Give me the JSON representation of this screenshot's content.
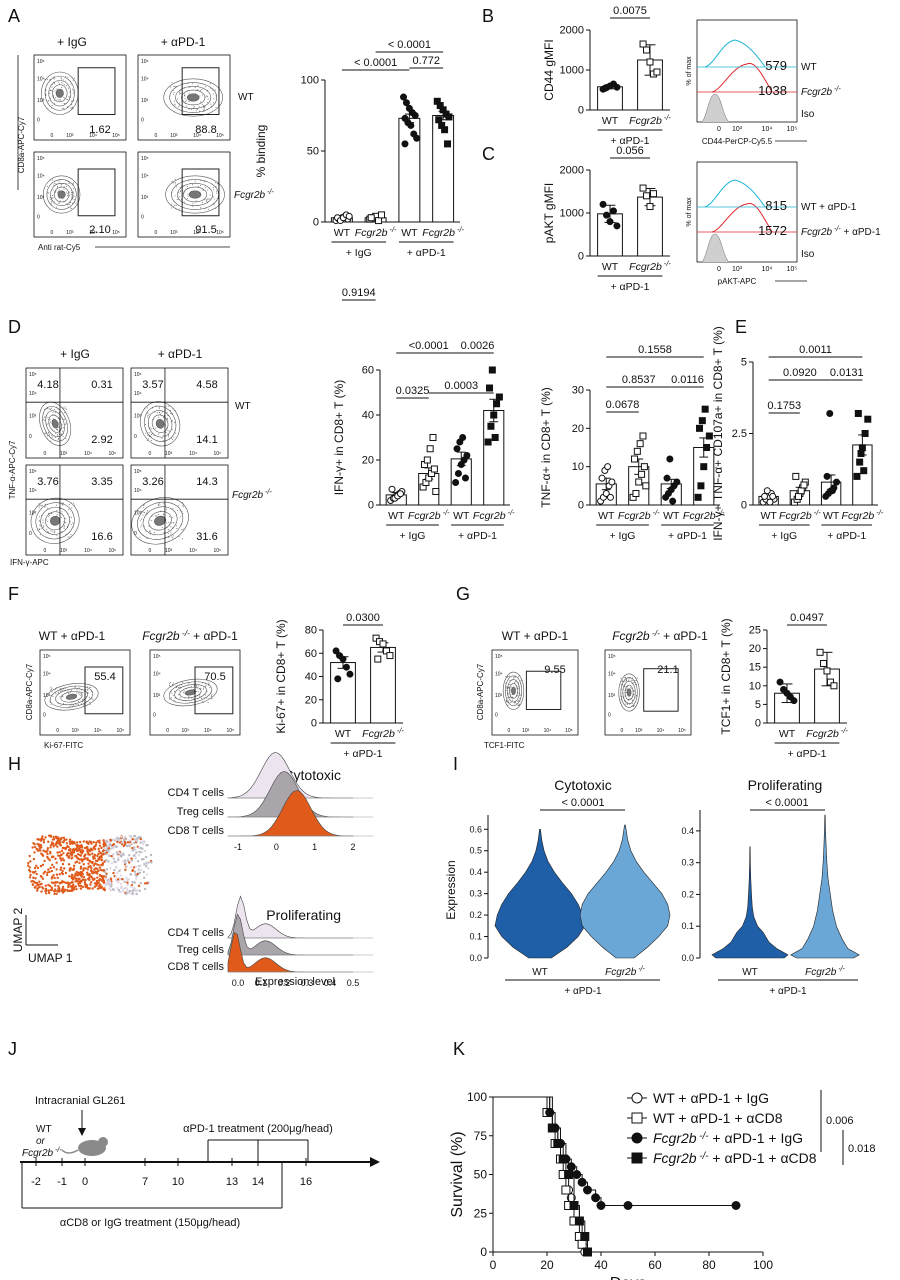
{
  "panels": {
    "A": {
      "letter": "A",
      "col_titles": [
        "+ IgG",
        "+ αPD-1"
      ],
      "row_labels": [
        "WT",
        "Fcgr2b -/-"
      ],
      "y_axis": "CD8a-APC-Cy7",
      "x_axis": "Anti rat-Cy5",
      "gate_values": [
        "1.62",
        "88.8",
        "2.10",
        "91.5"
      ]
    },
    "B": {
      "letter": "B",
      "hist_x_axis": "CD44-PerCP-Cy5.5",
      "hist_y_axis": "% of max",
      "hist_legend": [
        {
          "value": "579",
          "label": "WT",
          "color": "#1fb5d4"
        },
        {
          "value": "1038",
          "label": "Fcgr2b -/-",
          "color": "#e0262b"
        },
        {
          "value": "",
          "label": "Iso",
          "color": "#111111"
        }
      ]
    },
    "C": {
      "letter": "C",
      "hist_x_axis": "pAKT-APC",
      "hist_y_axis": "% of max",
      "hist_legend": [
        {
          "value": "815",
          "label": "WT + αPD-1",
          "color": "#1fb5d4"
        },
        {
          "value": "1572",
          "label": "Fcgr2b -/- + αPD-1",
          "color": "#e0262b"
        },
        {
          "value": "",
          "label": "Iso",
          "color": "#111111"
        }
      ]
    },
    "D": {
      "letter": "D",
      "col_titles": [
        "+ IgG",
        "+ αPD-1"
      ],
      "row_labels": [
        "WT",
        "Fcgr2b -/-"
      ],
      "y_axis": "TNF-α-APC-Cy7",
      "x_axis": "IFN-γ-APC",
      "quad_values": [
        [
          "4.18",
          "0.31",
          "2.92"
        ],
        [
          "3.57",
          "4.58",
          "14.1"
        ],
        [
          "3.76",
          "3.35",
          "16.6"
        ],
        [
          "3.26",
          "14.3",
          "31.6"
        ]
      ]
    },
    "E": {
      "letter": "E"
    },
    "F": {
      "letter": "F",
      "titles": [
        "WT + αPD-1",
        "Fcgr2b -/- + αPD-1"
      ],
      "y_axis": "CD8a-APC-Cy7",
      "x_axis": "Ki-67-FITC",
      "gate_values": [
        "55.4",
        "70.5"
      ]
    },
    "G": {
      "letter": "G",
      "titles": [
        "WT + αPD-1",
        "Fcgr2b -/- + αPD-1"
      ],
      "y_axis": "CD8a-APC-Cy7",
      "x_axis": "TCF1-FITC",
      "gate_values": [
        "9.55",
        "21.1"
      ]
    },
    "H": {
      "letter": "H",
      "umap_x": "UMAP 1",
      "umap_y": "UMAP 2",
      "ridge_titles": [
        "Cytotoxic",
        "Proliferating"
      ],
      "ridge_rows": [
        "CD4 T cells",
        "Treg cells",
        "CD8 T cells"
      ],
      "ridge1_ticks": [
        "-1",
        "0",
        "1",
        "2"
      ],
      "ridge2_ticks": [
        "0.0",
        "0.1",
        "0.2",
        "0.3",
        "0.4",
        "0.5"
      ],
      "ridge_x_label": "Expression level"
    },
    "I": {
      "letter": "I",
      "ylabel": "Expression",
      "titles": [
        "Cytotoxic",
        "Proliferating"
      ],
      "p_values": [
        "< 0.0001",
        "< 0.0001"
      ],
      "group_label": "+ αPD-1",
      "categories": [
        "WT",
        "Fcgr2b -/-"
      ],
      "ticks1": [
        "0.0",
        "0.1",
        "0.2",
        "0.3",
        "0.4",
        "0.5",
        "0.6"
      ],
      "ticks2": [
        "0.0",
        "0.1",
        "0.2",
        "0.3",
        "0.4"
      ]
    },
    "J": {
      "letter": "J",
      "tumor": "Intracranial GL261",
      "mouse_labels": [
        "WT",
        "or",
        "Fcgr2b -/-"
      ],
      "days": [
        "-2",
        "-1",
        "0",
        "7",
        "10",
        "13",
        "14",
        "16"
      ],
      "treat_pd1": "αPD-1 treatment (200μg/head)",
      "treat_cd8": "αCD8 or IgG treatment (150μg/head)"
    },
    "K": {
      "letter": "K"
    }
  },
  "chart_data": [
    {
      "id": "A-bar",
      "type": "bar",
      "ylabel": "% binding",
      "ylim": [
        0,
        100
      ],
      "yticks": [
        0,
        50,
        100
      ],
      "categories": [
        "WT",
        "Fcgr2b -/-",
        "WT",
        "Fcgr2b -/-"
      ],
      "groups": [
        "+ IgG",
        "+ αPD-1"
      ],
      "values": [
        3,
        3,
        73,
        75
      ],
      "errors": [
        1,
        1,
        3,
        3
      ],
      "fills": [
        "white",
        "white",
        "white",
        "white"
      ],
      "markers": [
        "circle-open",
        "square-open",
        "circle",
        "square"
      ],
      "points": [
        [
          1,
          2,
          3,
          4,
          2,
          3,
          1,
          3,
          5,
          4
        ],
        [
          2,
          3,
          4,
          1,
          5,
          3
        ],
        [
          88,
          84,
          80,
          77,
          75,
          73,
          70,
          68,
          62,
          59,
          55
        ],
        [
          85,
          82,
          79,
          76,
          74,
          72,
          68,
          65,
          55
        ]
      ],
      "p_values": [
        {
          "label": "0.9194",
          "a": 0,
          "b": 1
        },
        {
          "label": "< 0.0001",
          "a": 0,
          "b": 2
        },
        {
          "label": "< 0.0001",
          "a": 1,
          "b": 3
        },
        {
          "label": "0.772",
          "a": 2,
          "b": 3
        }
      ]
    },
    {
      "id": "B-bar",
      "type": "bar",
      "ylabel": "CD44 gMFI",
      "ylim": [
        0,
        2000
      ],
      "yticks": [
        0,
        1000,
        2000
      ],
      "categories": [
        "WT",
        "Fcgr2b -/-"
      ],
      "groups": [
        "+ αPD-1"
      ],
      "values": [
        580,
        1250
      ],
      "errors": [
        50,
        380
      ],
      "fills": [
        "white",
        "white"
      ],
      "markers": [
        "circle",
        "square-open"
      ],
      "points": [
        [
          520,
          560,
          600,
          650,
          570,
          540
        ],
        [
          1650,
          1500,
          1200,
          900,
          950
        ]
      ],
      "p_values": [
        {
          "label": "0.0075",
          "a": 0,
          "b": 1
        }
      ]
    },
    {
      "id": "C-bar",
      "type": "bar",
      "ylabel": "pAKT gMFI",
      "ylim": [
        0,
        2000
      ],
      "yticks": [
        0,
        1000,
        2000
      ],
      "categories": [
        "WT",
        "Fcgr2b -/-"
      ],
      "groups": [
        "+ αPD-1"
      ],
      "values": [
        980,
        1370
      ],
      "errors": [
        200,
        200
      ],
      "fills": [
        "white",
        "white"
      ],
      "markers": [
        "circle",
        "square-open"
      ],
      "points": [
        [
          1200,
          950,
          800,
          1050,
          700
        ],
        [
          1580,
          1400,
          1150,
          1450
        ]
      ],
      "p_values": [
        {
          "label": "0.056",
          "a": 0,
          "b": 1
        }
      ]
    },
    {
      "id": "D-bar1",
      "type": "bar",
      "ylabel": "IFN-γ+ in CD8+ T (%)",
      "ylim": [
        0,
        60
      ],
      "yticks": [
        0,
        20,
        40,
        60
      ],
      "categories": [
        "WT",
        "Fcgr2b -/-",
        "WT",
        "Fcgr2b -/-"
      ],
      "groups": [
        "+ IgG",
        "+ αPD-1"
      ],
      "values": [
        4.5,
        14,
        20.5,
        42
      ],
      "errors": [
        1,
        2.5,
        3,
        5
      ],
      "fills": [
        "white",
        "white",
        "white",
        "white"
      ],
      "markers": [
        "circle-open",
        "square-open",
        "circle",
        "square"
      ],
      "points": [
        [
          2,
          3,
          4,
          5,
          6,
          7,
          3,
          4,
          5
        ],
        [
          8,
          10,
          12,
          14,
          16,
          18,
          20,
          25,
          30,
          6
        ],
        [
          10,
          14,
          18,
          20,
          22,
          25,
          28,
          30,
          12
        ],
        [
          28,
          35,
          40,
          45,
          48,
          52,
          60,
          30
        ]
      ],
      "p_values": [
        {
          "label": "<0.0001",
          "a": 0,
          "b": 2
        },
        {
          "label": "0.0026",
          "a": 2,
          "b": 3
        },
        {
          "label": "0.0325",
          "a": 0,
          "b": 1
        },
        {
          "label": "0.0003",
          "a": 1,
          "b": 3
        }
      ]
    },
    {
      "id": "D-bar2",
      "type": "bar",
      "ylabel": "TNF-α+ in CD8+ T (%)",
      "ylim": [
        0,
        30
      ],
      "yticks": [
        0,
        10,
        20,
        30
      ],
      "categories": [
        "WT",
        "Fcgr2b -/-",
        "WT",
        "Fcgr2b -/-"
      ],
      "groups": [
        "+ IgG",
        "+ αPD-1"
      ],
      "values": [
        5.5,
        10,
        5.5,
        15
      ],
      "errors": [
        1.5,
        2,
        1.2,
        2.5
      ],
      "fills": [
        "white",
        "white",
        "white",
        "white"
      ],
      "markers": [
        "circle-open",
        "square-open",
        "circle",
        "square"
      ],
      "points": [
        [
          1,
          2,
          3,
          5,
          6,
          7,
          9,
          10,
          2
        ],
        [
          2,
          3,
          6,
          8,
          10,
          12,
          14,
          16,
          18,
          5
        ],
        [
          2,
          3,
          4,
          5,
          6,
          7,
          12,
          1
        ],
        [
          2,
          5,
          10,
          15,
          18,
          20,
          22,
          25
        ]
      ],
      "p_values": [
        {
          "label": "0.1558",
          "a": 0,
          "b": 3
        },
        {
          "label": "0.8537",
          "a": 0,
          "b": 2
        },
        {
          "label": "0.0116",
          "a": 2,
          "b": 3
        },
        {
          "label": "0.0678",
          "a": 0,
          "b": 1
        }
      ]
    },
    {
      "id": "E-bar",
      "type": "bar",
      "ylabel": "IFN-γ+ TNF-α+ CD107a+ in CD8+ T (%)",
      "ylim": [
        0,
        5
      ],
      "yticks": [
        0,
        2.5,
        5
      ],
      "categories": [
        "WT",
        "Fcgr2b -/-",
        "WT",
        "Fcgr2b -/-"
      ],
      "groups": [
        "+ IgG",
        "+ αPD-1"
      ],
      "values": [
        0.3,
        0.5,
        0.8,
        2.1
      ],
      "errors": [
        0.08,
        0.12,
        0.25,
        0.35
      ],
      "fills": [
        "white",
        "white",
        "white",
        "white"
      ],
      "markers": [
        "circle-open",
        "square-open",
        "circle",
        "square"
      ],
      "points": [
        [
          0.1,
          0.2,
          0.3,
          0.4,
          0.2,
          0.3,
          0.5,
          0.1,
          0.3
        ],
        [
          0.1,
          0.2,
          0.4,
          0.6,
          0.8,
          1.0,
          0.3,
          0.5,
          0.7
        ],
        [
          0.3,
          0.4,
          0.5,
          0.6,
          0.8,
          1.0,
          3.2,
          0.5
        ],
        [
          1.0,
          1.5,
          2.0,
          2.5,
          3.0,
          3.2,
          1.8,
          1.2
        ]
      ],
      "p_values": [
        {
          "label": "0.0011",
          "a": 0,
          "b": 3
        },
        {
          "label": "0.0920",
          "a": 0,
          "b": 2
        },
        {
          "label": "0.0131",
          "a": 2,
          "b": 3
        },
        {
          "label": "0.1753",
          "a": 0,
          "b": 1
        }
      ]
    },
    {
      "id": "F-bar",
      "type": "bar",
      "ylabel": "Ki-67+ in CD8+ T (%)",
      "ylim": [
        0,
        80
      ],
      "yticks": [
        0,
        20,
        40,
        60,
        80
      ],
      "categories": [
        "WT",
        "Fcgr2b -/-"
      ],
      "groups": [
        "+ αPD-1"
      ],
      "values": [
        52,
        65
      ],
      "errors": [
        5,
        4
      ],
      "fills": [
        "white",
        "white"
      ],
      "markers": [
        "circle",
        "square-open"
      ],
      "points": [
        [
          62,
          58,
          55,
          48,
          42,
          38
        ],
        [
          73,
          70,
          68,
          62,
          58,
          55
        ]
      ],
      "p_values": [
        {
          "label": "0.0300",
          "a": 0,
          "b": 1
        }
      ]
    },
    {
      "id": "G-bar",
      "type": "bar",
      "ylabel": "TCF1+ in CD8+ T (%)",
      "ylim": [
        0,
        25
      ],
      "yticks": [
        0,
        5,
        10,
        15,
        20,
        25
      ],
      "categories": [
        "WT",
        "Fcgr2b -/-"
      ],
      "groups": [
        "+ αPD-1"
      ],
      "values": [
        8,
        14.5
      ],
      "errors": [
        2.5,
        4.5
      ],
      "fills": [
        "white",
        "white"
      ],
      "markers": [
        "circle",
        "square-open"
      ],
      "points": [
        [
          11,
          9,
          8,
          7,
          6
        ],
        [
          19,
          16,
          14,
          11,
          10
        ]
      ],
      "p_values": [
        {
          "label": "0.0497",
          "a": 0,
          "b": 1
        }
      ]
    },
    {
      "id": "K-survival",
      "type": "line",
      "xlabel": "Days",
      "ylabel": "Survival (%)",
      "xlim": [
        0,
        100
      ],
      "ylim": [
        0,
        100
      ],
      "xticks": [
        0,
        20,
        40,
        60,
        80,
        100
      ],
      "yticks": [
        0,
        25,
        50,
        75,
        100
      ],
      "series": [
        {
          "name": "WT + αPD-1 + IgG",
          "marker": "circle-open",
          "x": [
            0,
            21,
            22,
            24,
            25,
            27,
            28,
            29,
            30,
            32,
            33,
            34
          ],
          "y": [
            100,
            90,
            80,
            70,
            60,
            50,
            40,
            35,
            30,
            20,
            10,
            0
          ]
        },
        {
          "name": "WT + αPD-1 + αCD8",
          "marker": "square-open",
          "x": [
            0,
            20,
            22,
            23,
            25,
            26,
            27,
            28,
            30,
            32,
            33,
            35
          ],
          "y": [
            100,
            90,
            80,
            70,
            60,
            50,
            40,
            30,
            20,
            10,
            5,
            0
          ]
        },
        {
          "name": "Fcgr2b -/- + αPD-1 + IgG",
          "marker": "circle",
          "x": [
            0,
            21,
            23,
            25,
            27,
            29,
            31,
            33,
            35,
            38,
            40,
            50,
            90
          ],
          "y": [
            100,
            90,
            80,
            70,
            60,
            55,
            50,
            45,
            40,
            35,
            30,
            30,
            30
          ]
        },
        {
          "name": "Fcgr2b -/- + αPD-1 + αCD8",
          "marker": "square",
          "x": [
            0,
            22,
            24,
            26,
            28,
            30,
            32,
            34,
            35
          ],
          "y": [
            100,
            80,
            70,
            60,
            50,
            30,
            20,
            10,
            0
          ]
        }
      ],
      "p_values": [
        "0.006",
        "0.018"
      ]
    }
  ],
  "violin_data": {
    "cytotoxic_range": [
      0,
      0.65
    ],
    "proliferating_range": [
      0,
      0.45
    ]
  }
}
